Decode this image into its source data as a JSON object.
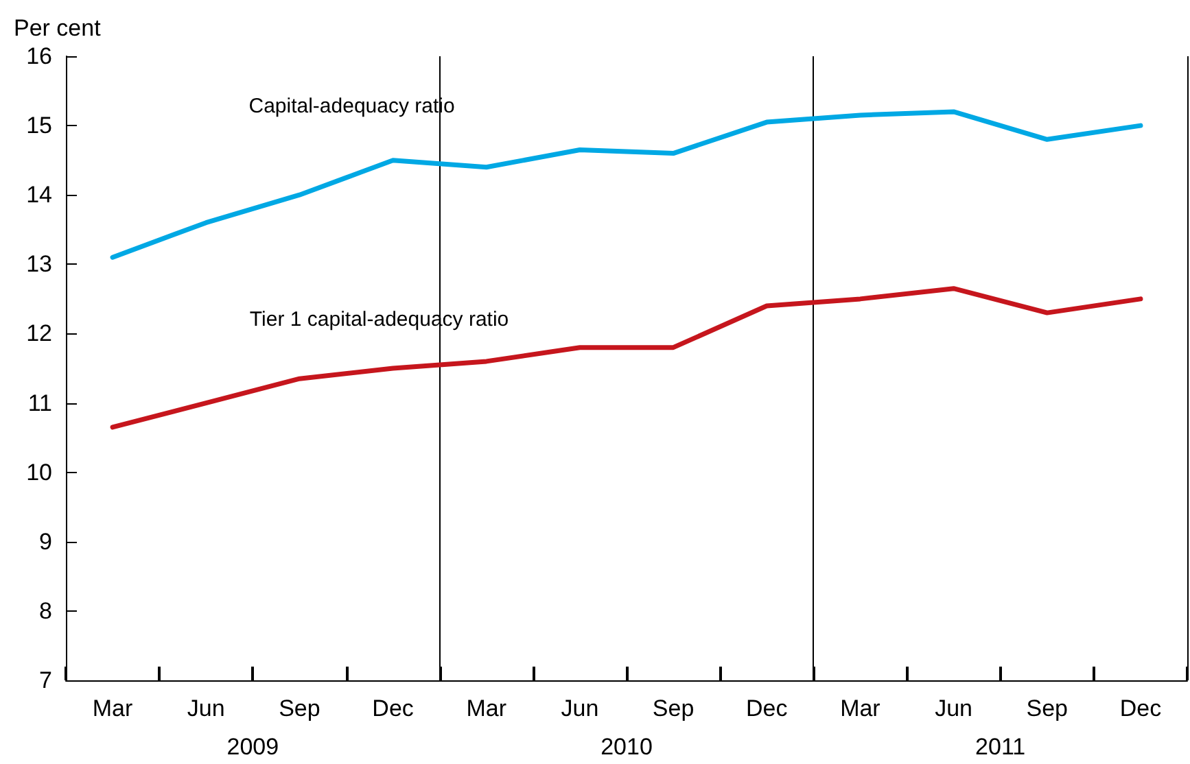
{
  "chart_data": {
    "type": "line",
    "ylabel": "Per cent",
    "categories": [
      "Mar",
      "Jun",
      "Sep",
      "Dec",
      "Mar",
      "Jun",
      "Sep",
      "Dec",
      "Mar",
      "Jun",
      "Sep",
      "Dec"
    ],
    "annotations": [
      "2009",
      "2010",
      "2011"
    ],
    "series": [
      {
        "name": "Capital-adequacy ratio",
        "color": "#00a8e4",
        "values": [
          13.1,
          13.6,
          14.0,
          14.5,
          14.4,
          14.65,
          14.6,
          15.05,
          15.15,
          15.2,
          14.8,
          15.0
        ]
      },
      {
        "name": "Tier 1 capital-adequacy ratio",
        "color": "#c6161d",
        "values": [
          10.65,
          11.0,
          11.35,
          11.5,
          11.6,
          11.8,
          11.8,
          12.4,
          12.5,
          12.65,
          12.3,
          12.5
        ]
      }
    ],
    "ylim": [
      7,
      16
    ],
    "yticks": [
      7,
      8,
      9,
      10,
      11,
      12,
      13,
      14,
      15,
      16
    ],
    "grid": false,
    "legend": false,
    "marker": "none",
    "line_style": "solid"
  }
}
